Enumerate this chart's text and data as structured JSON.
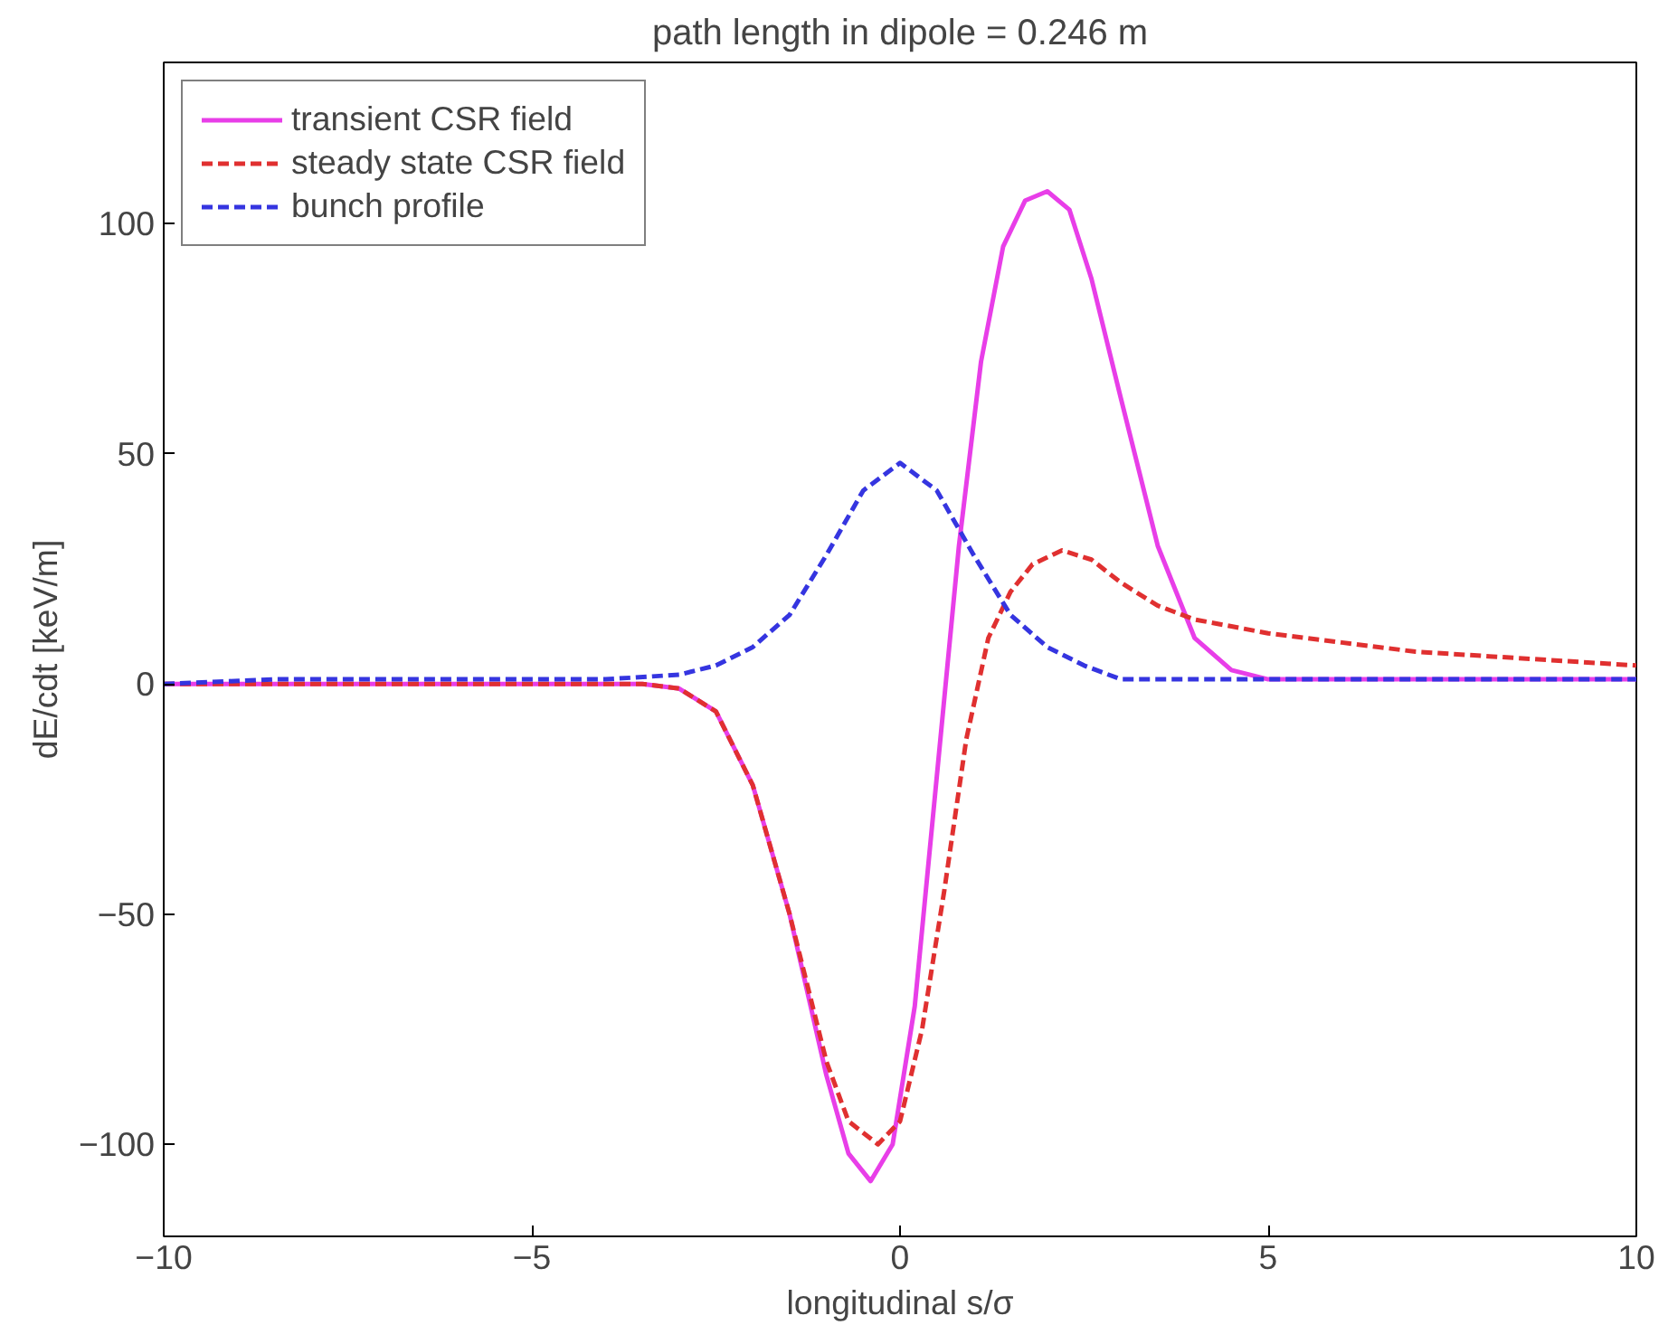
{
  "chart_data": {
    "type": "line",
    "title": "path length in dipole = 0.246 m",
    "xlabel": "longitudinal s/σ",
    "ylabel": "dE/cdt [keV/m]",
    "xlim": [
      -10,
      10
    ],
    "ylim": [
      -120,
      135
    ],
    "xticks": [
      -10,
      -5,
      0,
      5,
      10
    ],
    "yticks": [
      -100,
      -50,
      0,
      50,
      100
    ],
    "grid": false,
    "legend": "top left",
    "series": [
      {
        "name": "transient CSR field",
        "color": "#e83ee8",
        "line_style": "solid",
        "x": [
          -10,
          -5,
          -3.5,
          -3,
          -2.5,
          -2,
          -1.5,
          -1,
          -0.7,
          -0.4,
          -0.1,
          0.2,
          0.5,
          0.8,
          1.1,
          1.4,
          1.7,
          2.0,
          2.3,
          2.6,
          3.0,
          3.5,
          4.0,
          4.5,
          5,
          7,
          10
        ],
        "values": [
          0,
          0,
          0,
          -1,
          -6,
          -22,
          -50,
          -85,
          -102,
          -108,
          -100,
          -70,
          -20,
          30,
          70,
          95,
          105,
          107,
          103,
          88,
          62,
          30,
          10,
          3,
          1,
          1,
          1
        ]
      },
      {
        "name": "steady state CSR field",
        "color": "#e03030",
        "line_style": "dashed",
        "x": [
          -10,
          -5,
          -3.5,
          -3,
          -2.5,
          -2,
          -1.5,
          -1,
          -0.7,
          -0.3,
          0,
          0.3,
          0.6,
          0.9,
          1.2,
          1.5,
          1.8,
          2.2,
          2.6,
          3,
          3.5,
          4,
          5,
          6,
          7,
          8,
          9,
          10
        ],
        "values": [
          0,
          0,
          0,
          -1,
          -6,
          -22,
          -50,
          -82,
          -95,
          -100,
          -95,
          -75,
          -45,
          -12,
          10,
          20,
          26,
          29,
          27,
          22,
          17,
          14,
          11,
          9,
          7,
          6,
          5,
          4
        ]
      },
      {
        "name": "bunch profile",
        "color": "#3535e0",
        "line_style": "dashed",
        "x": [
          -10,
          -8.5,
          -4,
          -3,
          -2.5,
          -2,
          -1.5,
          -1,
          -0.5,
          0,
          0.5,
          1,
          1.5,
          2,
          2.5,
          3,
          4,
          10
        ],
        "values": [
          0,
          1,
          1,
          2,
          4,
          8,
          15,
          28,
          42,
          48,
          42,
          28,
          15,
          8,
          4,
          1,
          1,
          1
        ]
      }
    ]
  }
}
